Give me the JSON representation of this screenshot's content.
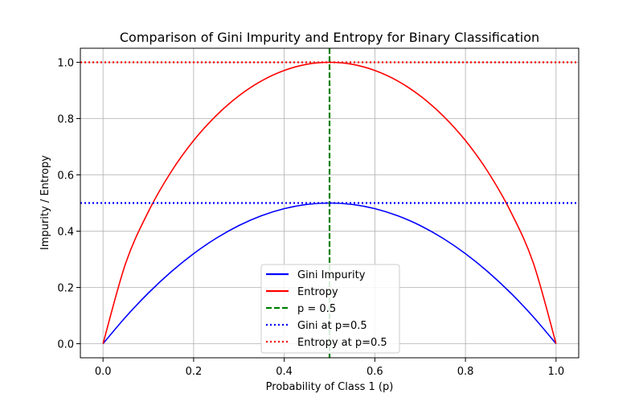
{
  "chart_data": {
    "type": "line",
    "title": "Comparison of Gini Impurity and Entropy for Binary Classification",
    "xlabel": "Probability of Class 1 (p)",
    "ylabel": "Impurity / Entropy",
    "xlim": [
      -0.05,
      1.05
    ],
    "ylim": [
      -0.05,
      1.05
    ],
    "xticks": [
      0.0,
      0.2,
      0.4,
      0.6,
      0.8,
      1.0
    ],
    "xtick_labels": [
      "0.0",
      "0.2",
      "0.4",
      "0.6",
      "0.8",
      "1.0"
    ],
    "yticks": [
      0.0,
      0.2,
      0.4,
      0.6,
      0.8,
      1.0
    ],
    "ytick_labels": [
      "0.0",
      "0.2",
      "0.4",
      "0.6",
      "0.8",
      "1.0"
    ],
    "grid": true,
    "legend_position": "lower center",
    "x": [
      0.0,
      0.05,
      0.1,
      0.15,
      0.2,
      0.25,
      0.3,
      0.35,
      0.4,
      0.45,
      0.5,
      0.55,
      0.6,
      0.65,
      0.7,
      0.75,
      0.8,
      0.85,
      0.9,
      0.95,
      1.0
    ],
    "series": [
      {
        "name": "Gini Impurity",
        "color": "#0000ff",
        "style": "solid",
        "values": [
          0.0,
          0.095,
          0.18,
          0.255,
          0.32,
          0.375,
          0.42,
          0.455,
          0.48,
          0.495,
          0.5,
          0.495,
          0.48,
          0.455,
          0.42,
          0.375,
          0.32,
          0.255,
          0.18,
          0.095,
          0.0
        ]
      },
      {
        "name": "Entropy",
        "color": "#ff0000",
        "style": "solid",
        "values": [
          0.0,
          0.286,
          0.469,
          0.61,
          0.722,
          0.811,
          0.881,
          0.934,
          0.971,
          0.993,
          1.0,
          0.993,
          0.971,
          0.934,
          0.881,
          0.811,
          0.722,
          0.61,
          0.469,
          0.286,
          0.0
        ]
      }
    ],
    "reference_lines": [
      {
        "name": "p = 0.5",
        "orientation": "vertical",
        "value": 0.5,
        "color": "#008000",
        "style": "dashed"
      },
      {
        "name": "Gini at p=0.5",
        "orientation": "horizontal",
        "value": 0.5,
        "color": "#0000ff",
        "style": "dotted"
      },
      {
        "name": "Entropy at p=0.5",
        "orientation": "horizontal",
        "value": 1.0,
        "color": "#ff0000",
        "style": "dotted"
      }
    ]
  }
}
